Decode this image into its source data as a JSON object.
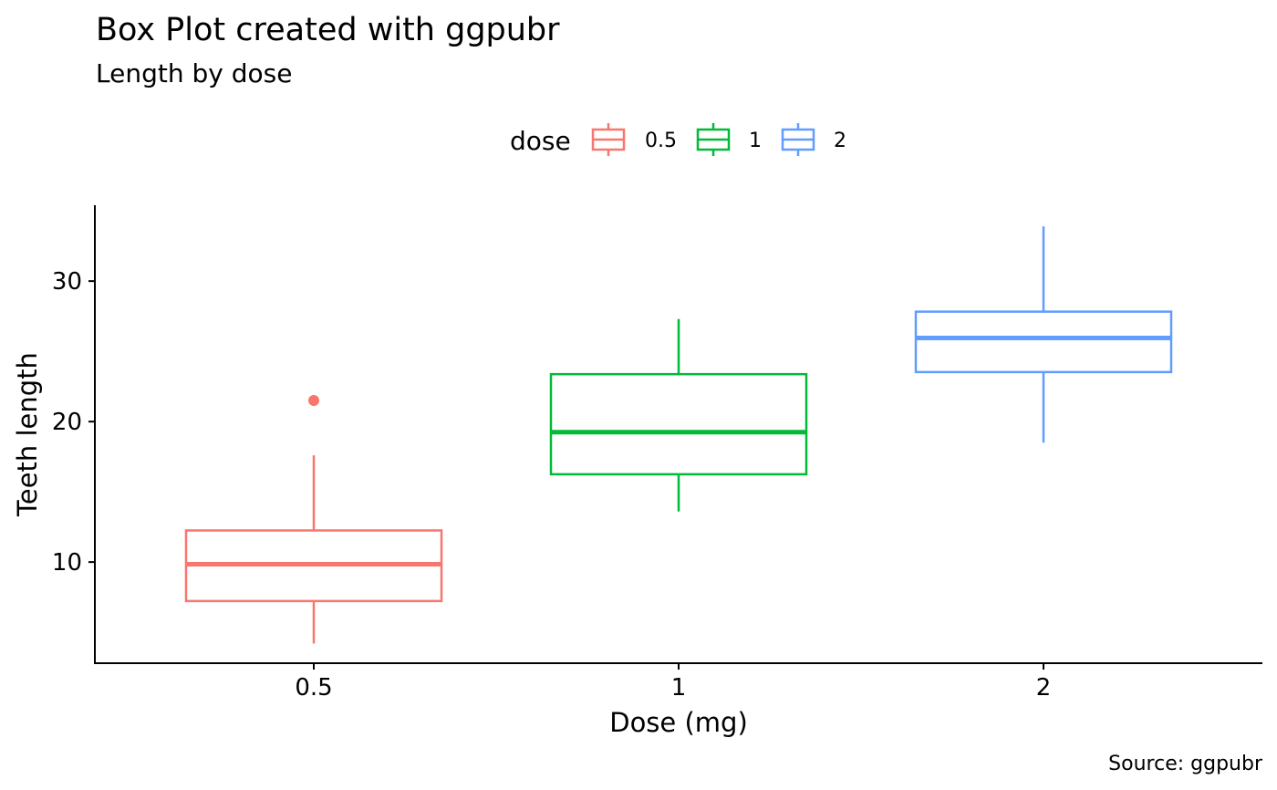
{
  "chart_data": {
    "type": "box",
    "title": "Box Plot created with ggpubr",
    "subtitle": "Length by dose",
    "caption": "Source: ggpubr",
    "xlabel": "Dose (mg)",
    "ylabel": "Teeth length",
    "categories": [
      "0.5",
      "1",
      "2"
    ],
    "ylim": [
      2.8,
      35.4
    ],
    "yticks": [
      10,
      20,
      30
    ],
    "grid": false,
    "legend": {
      "title": "dose",
      "position": "top",
      "entries": [
        "0.5",
        "1",
        "2"
      ]
    },
    "series": [
      {
        "name": "0.5",
        "color": "#F8766D",
        "min": 4.2,
        "q1": 7.225,
        "median": 9.85,
        "q3": 12.25,
        "max": 17.6,
        "outliers": [
          21.5
        ]
      },
      {
        "name": "1",
        "color": "#00BA38",
        "min": 13.6,
        "q1": 16.25,
        "median": 19.25,
        "q3": 23.375,
        "max": 27.3,
        "outliers": []
      },
      {
        "name": "2",
        "color": "#619CFF",
        "min": 18.5,
        "q1": 23.525,
        "median": 25.95,
        "q3": 27.825,
        "max": 33.9,
        "outliers": []
      }
    ]
  }
}
